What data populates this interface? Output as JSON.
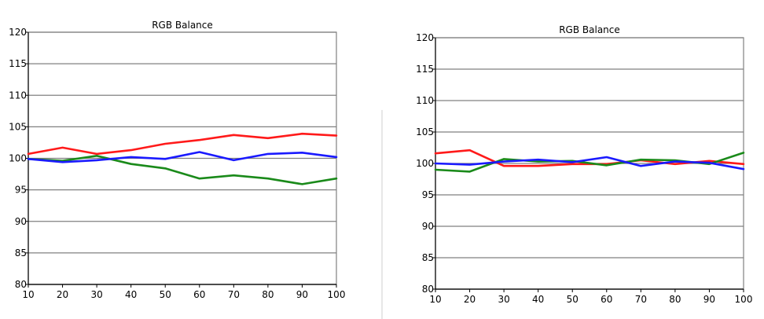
{
  "chart_data": [
    {
      "type": "line",
      "title": "RGB Balance",
      "xlabel": "",
      "ylabel": "",
      "x": [
        10,
        20,
        30,
        40,
        50,
        60,
        70,
        80,
        90,
        100
      ],
      "ylim": [
        80,
        120
      ],
      "yticks": [
        80,
        85,
        90,
        95,
        100,
        105,
        110,
        115,
        120
      ],
      "grid": true,
      "series": [
        {
          "color": "#ff1a1a",
          "values": [
            100.7,
            101.7,
            100.7,
            101.3,
            102.3,
            102.9,
            103.7,
            103.2,
            103.9,
            103.6
          ]
        },
        {
          "color": "#1a8a1a",
          "values": [
            99.9,
            99.6,
            100.4,
            99.1,
            98.4,
            96.8,
            97.3,
            96.8,
            95.9,
            96.8
          ]
        },
        {
          "color": "#1a1aff",
          "values": [
            99.9,
            99.4,
            99.7,
            100.2,
            99.9,
            101.0,
            99.7,
            100.7,
            100.9,
            100.2
          ]
        }
      ]
    },
    {
      "type": "line",
      "title": "RGB Balance",
      "xlabel": "",
      "ylabel": "",
      "x": [
        10,
        20,
        30,
        40,
        50,
        60,
        70,
        80,
        90,
        100
      ],
      "ylim": [
        80,
        120
      ],
      "yticks": [
        80,
        85,
        90,
        95,
        100,
        105,
        110,
        115,
        120
      ],
      "grid": true,
      "series": [
        {
          "color": "#ff1a1a",
          "values": [
            101.6,
            102.1,
            99.6,
            99.6,
            99.9,
            99.9,
            100.5,
            99.9,
            100.4,
            99.9
          ]
        },
        {
          "color": "#1a8a1a",
          "values": [
            99.0,
            98.7,
            100.7,
            100.3,
            100.4,
            99.7,
            100.6,
            100.5,
            99.9,
            101.7
          ]
        },
        {
          "color": "#1a1aff",
          "values": [
            100.0,
            99.8,
            100.3,
            100.6,
            100.2,
            101.0,
            99.6,
            100.3,
            100.1,
            99.1
          ]
        }
      ]
    }
  ]
}
